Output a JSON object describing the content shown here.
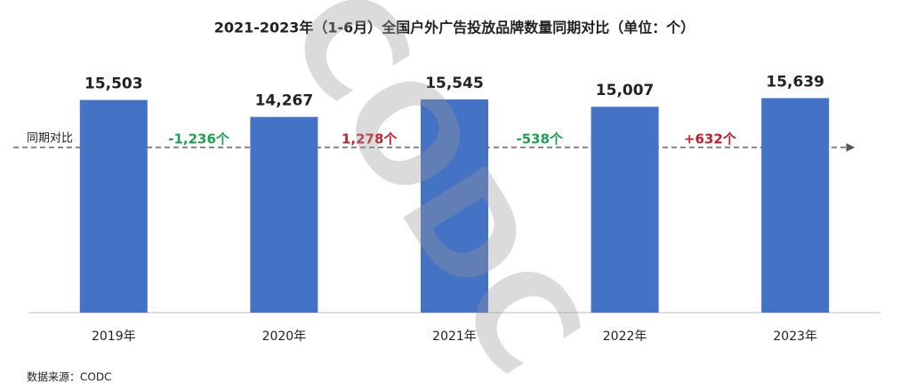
{
  "chart_data": {
    "type": "bar",
    "title": "2021-2023年（1-6月）全国户外广告投放品牌数量同期对比（单位：个）",
    "categories": [
      "2019年",
      "2020年",
      "2021年",
      "2022年",
      "2023年"
    ],
    "values": [
      15503,
      14267,
      15545,
      15007,
      15639
    ],
    "value_labels": [
      "15,503",
      "14,267",
      "15,545",
      "15,007",
      "15,639"
    ],
    "color": "#4472c4",
    "ylim": [
      0,
      18000
    ],
    "reference_label": "同期对比",
    "comparisons": [
      {
        "text": "-1,236个",
        "color": "#1e9e50"
      },
      {
        "text": "1,278个",
        "color": "#c0202a"
      },
      {
        "text": "-538个",
        "color": "#1e9e50"
      },
      {
        "text": "+632个",
        "color": "#c0202a"
      }
    ],
    "watermark": "CODC",
    "source": "数据来源：CODC"
  }
}
